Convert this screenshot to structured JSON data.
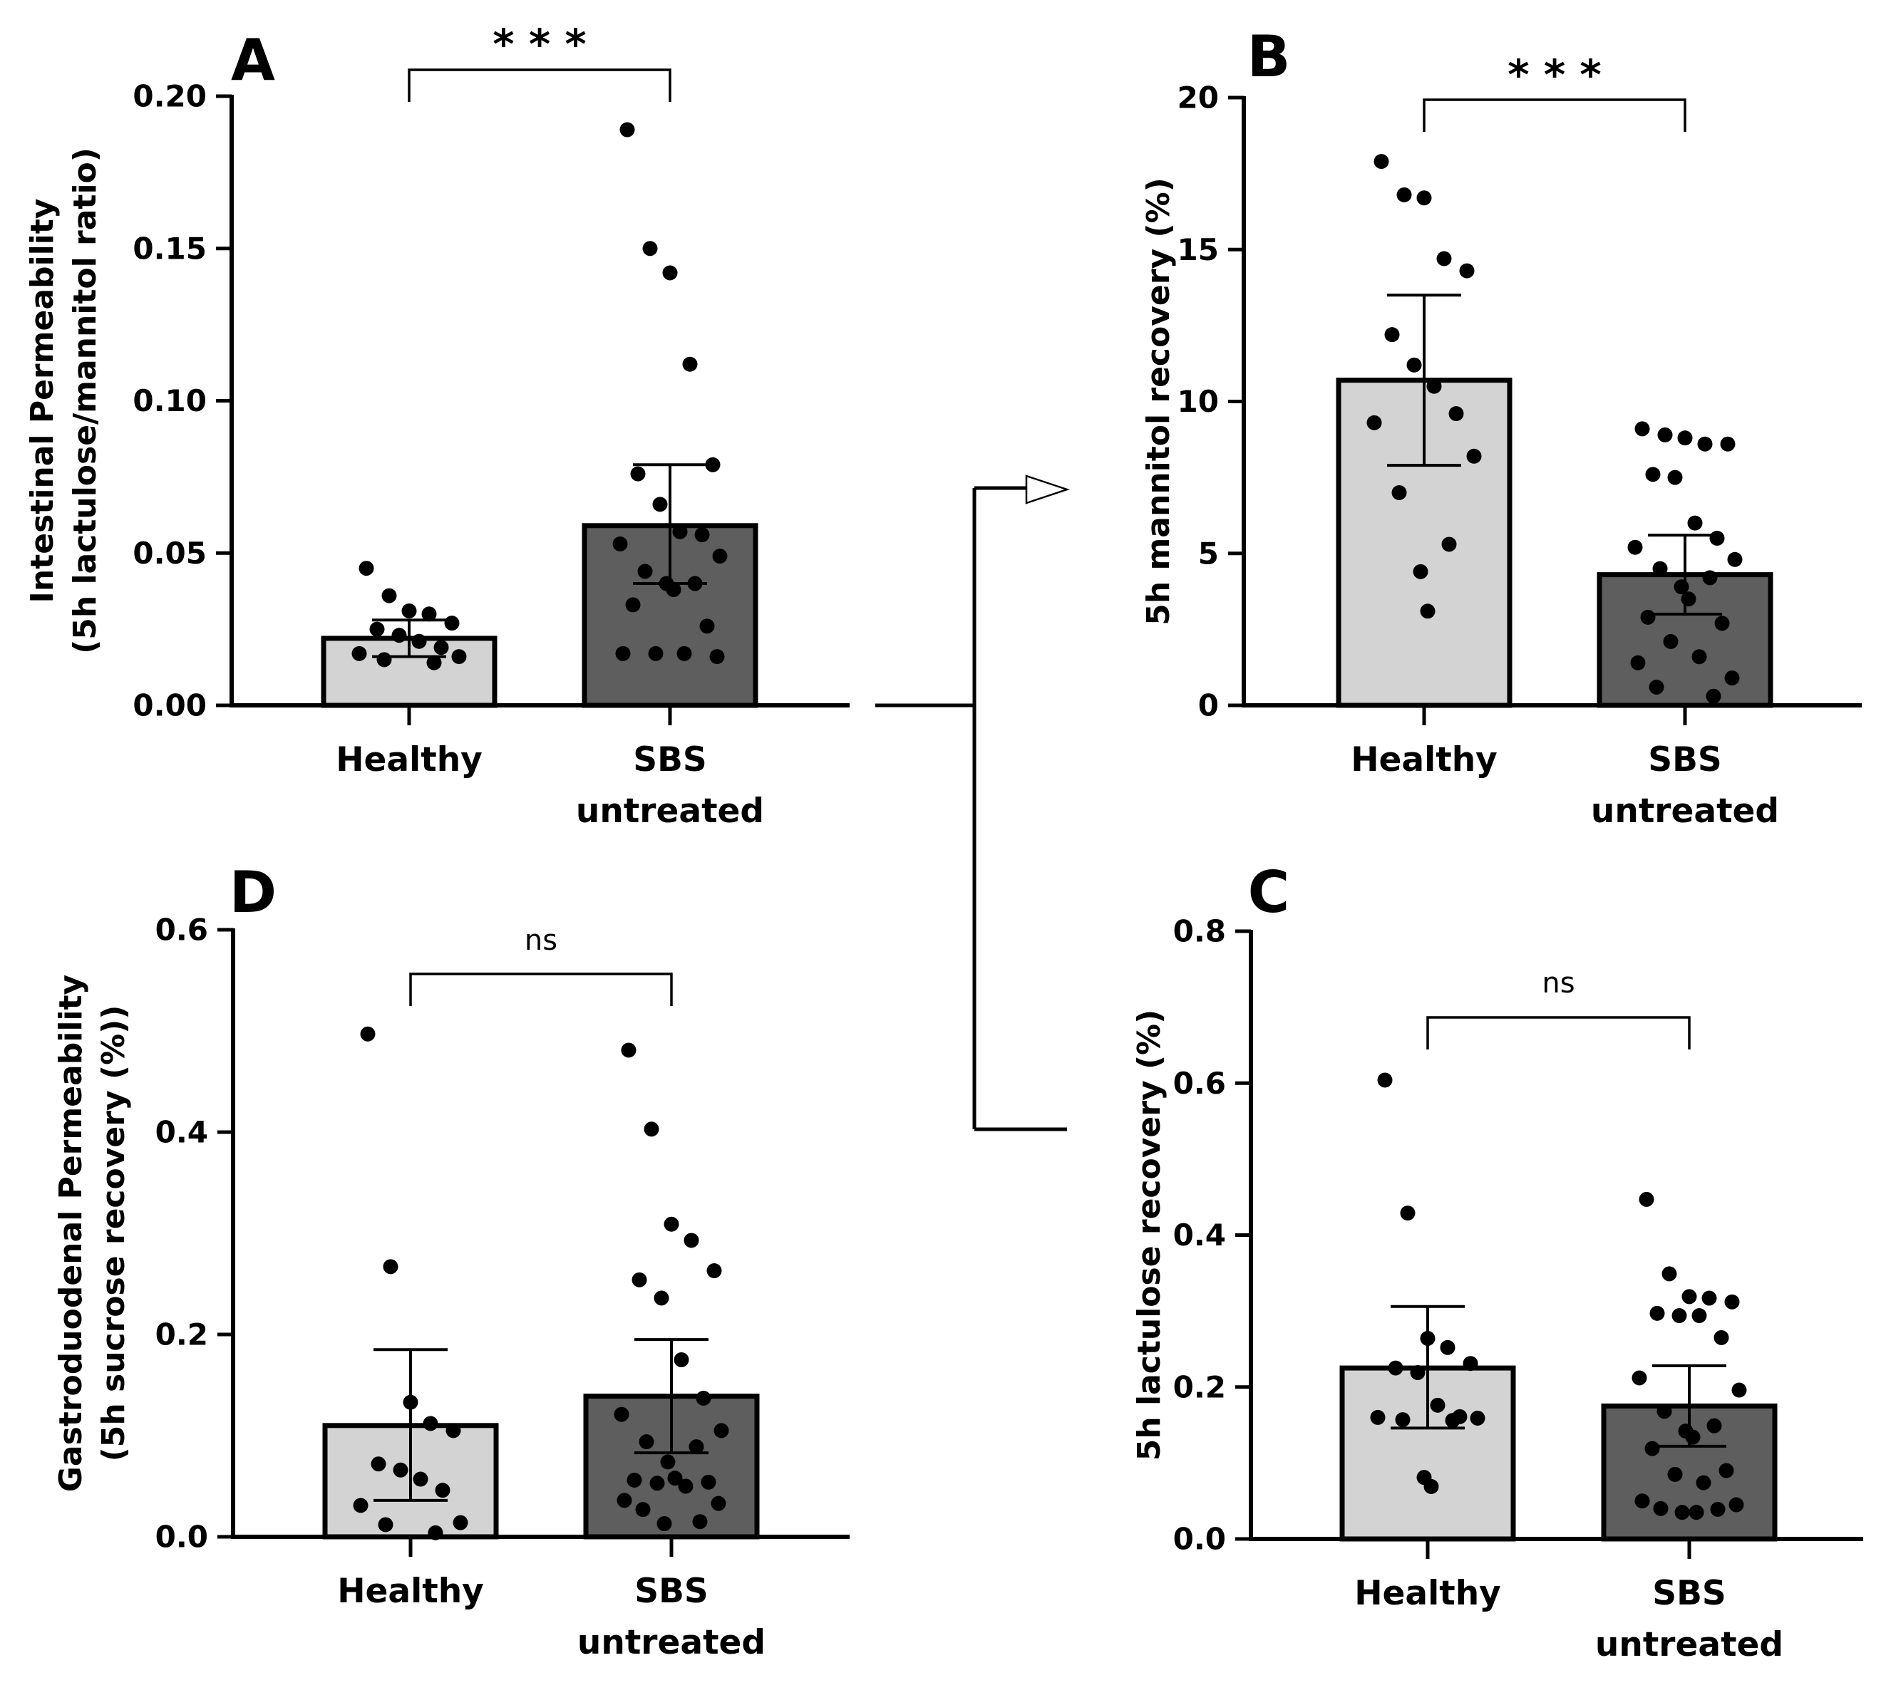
{
  "colors": {
    "healthy_bar": "#d3d3d3",
    "sbs_bar": "#5e5e5e",
    "ink": "#000000"
  },
  "chart_data": [
    {
      "id": "A",
      "type": "bar",
      "panel_letter": "A",
      "ylabel_lines": [
        "Intestinal Permeability",
        "(5h lactulose/mannitol ratio)"
      ],
      "ylim": [
        0,
        0.2
      ],
      "yticks": [
        "0.00",
        "0.05",
        "0.10",
        "0.15",
        "0.20"
      ],
      "categories": [
        {
          "label_lines": [
            "Healthy"
          ]
        },
        {
          "label_lines": [
            "SBS",
            "untreated"
          ]
        }
      ],
      "series": [
        {
          "category": 0,
          "mean": 0.022,
          "err_low": 0.016,
          "err_high": 0.028,
          "color": "#d3d3d3",
          "points": [
            0.045,
            0.036,
            0.031,
            0.03,
            0.027,
            0.025,
            0.023,
            0.021,
            0.019,
            0.017,
            0.016,
            0.015,
            0.014
          ]
        },
        {
          "category": 1,
          "mean": 0.059,
          "err_low": 0.04,
          "err_high": 0.079,
          "color": "#5e5e5e",
          "points": [
            0.189,
            0.15,
            0.142,
            0.112,
            0.079,
            0.076,
            0.066,
            0.057,
            0.056,
            0.053,
            0.049,
            0.044,
            0.04,
            0.04,
            0.038,
            0.033,
            0.026,
            0.017,
            0.017,
            0.017,
            0.016
          ]
        }
      ],
      "significance": "* * *"
    },
    {
      "id": "B",
      "type": "bar",
      "panel_letter": "B",
      "ylabel_lines": [
        "5h mannitol recovery (%)"
      ],
      "ylim": [
        0,
        20
      ],
      "yticks": [
        "0",
        "5",
        "10",
        "15",
        "20"
      ],
      "categories": [
        {
          "label_lines": [
            "Healthy"
          ]
        },
        {
          "label_lines": [
            "SBS",
            "untreated"
          ]
        }
      ],
      "series": [
        {
          "category": 0,
          "mean": 10.7,
          "err_low": 7.9,
          "err_high": 13.5,
          "color": "#d3d3d3",
          "points": [
            17.9,
            16.8,
            16.7,
            14.7,
            14.3,
            12.2,
            11.2,
            10.5,
            9.6,
            9.3,
            8.2,
            7.0,
            5.3,
            4.4,
            3.1
          ]
        },
        {
          "category": 1,
          "mean": 4.3,
          "err_low": 3.0,
          "err_high": 5.6,
          "color": "#5e5e5e",
          "points": [
            9.1,
            8.9,
            8.8,
            8.6,
            8.6,
            7.6,
            7.5,
            6.0,
            5.5,
            5.2,
            4.8,
            4.5,
            4.2,
            3.9,
            3.5,
            2.9,
            2.7,
            2.1,
            1.6,
            1.4,
            0.9,
            0.6,
            0.3
          ]
        }
      ],
      "significance": "* * *"
    },
    {
      "id": "D",
      "type": "bar",
      "panel_letter": "D",
      "ylabel_lines": [
        "Gastroduodenal Permeability",
        "(5h sucrose recovery (%))"
      ],
      "ylim": [
        0,
        0.6
      ],
      "yticks": [
        "0.0",
        "0.2",
        "0.4",
        "0.6"
      ],
      "categories": [
        {
          "label_lines": [
            "Healthy"
          ]
        },
        {
          "label_lines": [
            "SBS",
            "untreated"
          ]
        }
      ],
      "series": [
        {
          "category": 0,
          "mean": 0.11,
          "err_low": 0.036,
          "err_high": 0.185,
          "color": "#d3d3d3",
          "points": [
            0.497,
            0.267,
            0.133,
            0.112,
            0.105,
            0.072,
            0.066,
            0.057,
            0.046,
            0.031,
            0.014,
            0.012,
            0.004
          ]
        },
        {
          "category": 1,
          "mean": 0.139,
          "err_low": 0.083,
          "err_high": 0.195,
          "color": "#5e5e5e",
          "points": [
            0.481,
            0.403,
            0.309,
            0.293,
            0.263,
            0.254,
            0.236,
            0.175,
            0.137,
            0.121,
            0.105,
            0.094,
            0.089,
            0.074,
            0.058,
            0.056,
            0.054,
            0.053,
            0.05,
            0.036,
            0.033,
            0.027,
            0.015,
            0.013
          ]
        }
      ],
      "significance": "ns"
    },
    {
      "id": "C",
      "type": "bar",
      "panel_letter": "C",
      "ylabel_lines": [
        "5h lactulose recovery (%)"
      ],
      "ylim": [
        0,
        0.8
      ],
      "yticks": [
        "0.0",
        "0.2",
        "0.4",
        "0.6",
        "0.8"
      ],
      "categories": [
        {
          "label_lines": [
            "Healthy"
          ]
        },
        {
          "label_lines": [
            "SBS",
            "untreated"
          ]
        }
      ],
      "series": [
        {
          "category": 0,
          "mean": 0.225,
          "err_low": 0.146,
          "err_high": 0.306,
          "color": "#d3d3d3",
          "points": [
            0.604,
            0.429,
            0.264,
            0.252,
            0.231,
            0.225,
            0.219,
            0.176,
            0.161,
            0.16,
            0.159,
            0.157,
            0.156,
            0.081,
            0.069
          ]
        },
        {
          "category": 1,
          "mean": 0.175,
          "err_low": 0.122,
          "err_high": 0.228,
          "color": "#5e5e5e",
          "points": [
            0.447,
            0.349,
            0.319,
            0.317,
            0.312,
            0.297,
            0.294,
            0.294,
            0.265,
            0.212,
            0.196,
            0.168,
            0.149,
            0.142,
            0.134,
            0.119,
            0.09,
            0.085,
            0.074,
            0.05,
            0.045,
            0.04,
            0.039,
            0.035,
            0.035
          ]
        }
      ],
      "significance": "ns"
    }
  ]
}
